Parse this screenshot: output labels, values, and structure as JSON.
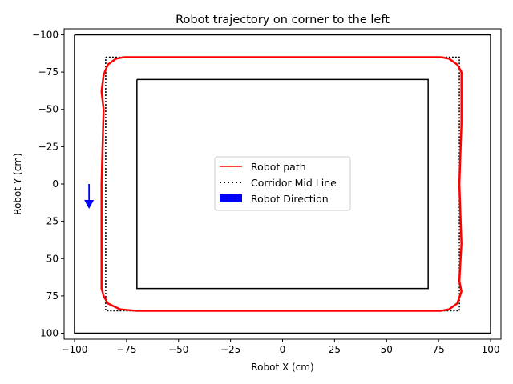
{
  "chart_data": {
    "type": "line",
    "title": "Robot trajectory on corner to the left",
    "xlabel": "Robot X (cm)",
    "ylabel": "Robot Y (cm)",
    "xlim": [
      -105,
      105
    ],
    "ylim": [
      104,
      -104
    ],
    "y_inverted": true,
    "xticks": [
      -100,
      -75,
      -50,
      -25,
      0,
      25,
      50,
      75,
      100
    ],
    "yticks": [
      -100,
      -75,
      -50,
      -25,
      0,
      25,
      50,
      75,
      100
    ],
    "xtick_labels": [
      "−100",
      "−75",
      "−50",
      "−25",
      "0",
      "25",
      "50",
      "75",
      "100"
    ],
    "ytick_labels": [
      "−100",
      "−75",
      "−50",
      "−25",
      "0",
      "25",
      "50",
      "75",
      "100"
    ],
    "grid": false,
    "legend_position": "center",
    "series": [
      {
        "name": "Robot path",
        "style": "line",
        "color": "#ff0000",
        "x": [
          -70,
          -40,
          0,
          40,
          70,
          76,
          80,
          84,
          86,
          86,
          86,
          85,
          86,
          85,
          86,
          84,
          80,
          76,
          70,
          40,
          0,
          -40,
          -70,
          -78,
          -84,
          -86,
          -87,
          -87,
          -87,
          -86,
          -87,
          -86,
          -84,
          -80,
          -76,
          -70
        ],
        "y": [
          -85,
          -85,
          -85,
          -85,
          -85,
          -85,
          -84,
          -80,
          -75,
          -60,
          -40,
          0,
          40,
          65,
          72,
          80,
          84,
          85,
          85,
          85,
          85,
          85,
          85,
          84,
          80,
          75,
          70,
          55,
          0,
          -50,
          -62,
          -73,
          -80,
          -84,
          -85,
          -85
        ]
      },
      {
        "name": "Corridor Mid Line",
        "style": "dotted",
        "color": "#000000",
        "x": [
          -85,
          85,
          85,
          -85,
          -85
        ],
        "y": [
          -85,
          -85,
          85,
          85,
          -85
        ]
      }
    ],
    "walls": [
      {
        "color": "#000000",
        "x": [
          -100,
          100,
          100,
          -100,
          -100
        ],
        "y": [
          -100,
          -100,
          100,
          100,
          -100
        ]
      },
      {
        "color": "#000000",
        "x": [
          -70,
          70,
          70,
          -70,
          -70
        ],
        "y": [
          -70,
          -70,
          70,
          70,
          -70
        ]
      }
    ],
    "arrow": {
      "name": "Robot Direction",
      "color": "#0000ff",
      "x": -93,
      "y": 0,
      "dx": 0,
      "dy": 15
    }
  }
}
